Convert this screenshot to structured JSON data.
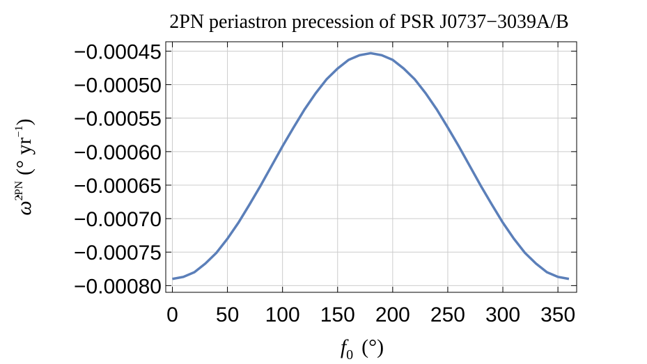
{
  "chart_data": {
    "type": "line",
    "title": "2PN periastron precession of PSR J0737−3039A/B",
    "xlabel": [
      "f",
      "0",
      "(°)"
    ],
    "ylabel": [
      "ω̇",
      "2PN",
      "(°  yr",
      "−1",
      ")"
    ],
    "x": [
      0,
      10,
      20,
      30,
      40,
      50,
      60,
      70,
      80,
      90,
      100,
      110,
      120,
      130,
      140,
      150,
      160,
      170,
      180,
      190,
      200,
      210,
      220,
      230,
      240,
      250,
      260,
      270,
      280,
      290,
      300,
      310,
      320,
      330,
      340,
      350,
      360
    ],
    "series": [
      {
        "name": null,
        "color": "#5b7fb9",
        "values": [
          -0.00079,
          -0.000787,
          -0.00078,
          -0.000767,
          -0.000751,
          -0.00073,
          -0.000706,
          -0.000679,
          -0.000651,
          -0.0006215,
          -0.000592,
          -0.000564,
          -0.000537,
          -0.000513,
          -0.000492,
          -0.000476,
          -0.000463,
          -0.000456,
          -0.000453,
          -0.000456,
          -0.000463,
          -0.000476,
          -0.000492,
          -0.000513,
          -0.000537,
          -0.000564,
          -0.000592,
          -0.0006215,
          -0.000651,
          -0.000679,
          -0.000706,
          -0.00073,
          -0.000751,
          -0.000767,
          -0.00078,
          -0.000787,
          -0.00079
        ]
      }
    ],
    "xlim": [
      -6,
      367
    ],
    "ylim": [
      -0.00081,
      -0.000436
    ],
    "xticks": [
      0,
      50,
      100,
      150,
      200,
      250,
      300,
      350
    ],
    "yticks": [
      {
        "value": -0.00045,
        "label": "−0.00045"
      },
      {
        "value": -0.0005,
        "label": "−0.00050"
      },
      {
        "value": -0.00055,
        "label": "−0.00055"
      },
      {
        "value": -0.0006,
        "label": "−0.00060"
      },
      {
        "value": -0.00065,
        "label": "−0.00065"
      },
      {
        "value": -0.0007,
        "label": "−0.00070"
      },
      {
        "value": -0.00075,
        "label": "−0.00075"
      },
      {
        "value": -0.0008,
        "label": "−0.00080"
      }
    ],
    "grid": true
  }
}
